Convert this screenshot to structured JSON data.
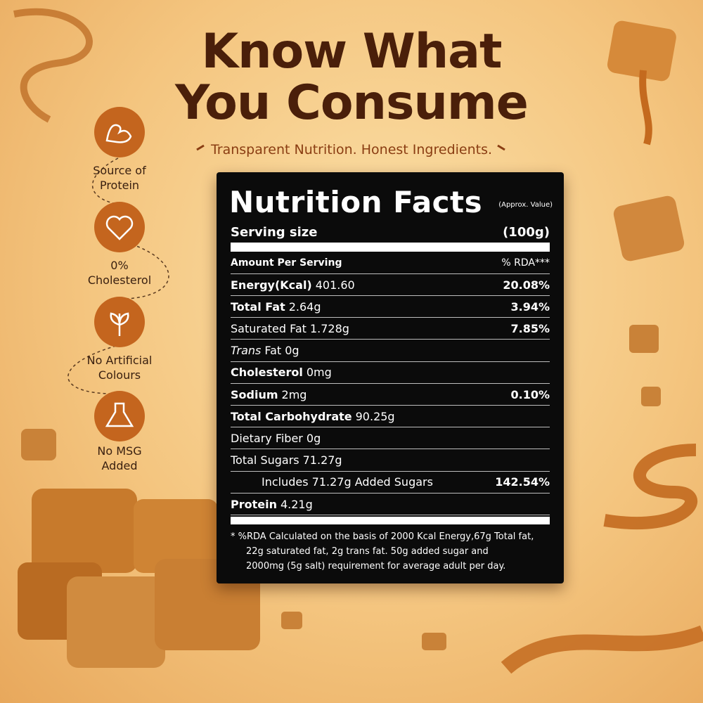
{
  "header": {
    "title_lines": [
      "Know What",
      "You Consume"
    ],
    "subtitle": "Transparent Nutrition. Honest Ingredients."
  },
  "features": [
    {
      "label_lines": [
        "Source of",
        "Protein"
      ]
    },
    {
      "label_lines": [
        "0%",
        "Cholesterol"
      ]
    },
    {
      "label_lines": [
        "No Artificial",
        "Colours"
      ]
    },
    {
      "label_lines": [
        "No MSG",
        "Added"
      ]
    }
  ],
  "nutrition": {
    "title": "Nutrition Facts",
    "note": "(Approx. Value)",
    "serving": {
      "label": "Serving size",
      "value": "(100g)"
    },
    "amount_header": {
      "label": "Amount Per Serving",
      "value": "% RDA***"
    },
    "rows": [
      {
        "name": "Energy(Kcal)",
        "amount": "401.60",
        "rda": "20.08%",
        "bold": true
      },
      {
        "name": "Total Fat",
        "amount": "2.64g",
        "rda": "3.94%",
        "bold": true
      },
      {
        "name": "Saturated Fat",
        "amount": "1.728g",
        "rda": "7.85%",
        "bold": false
      },
      {
        "name_italic": "Trans",
        "name": "Fat",
        "amount": "0g",
        "bold": false
      },
      {
        "name": "Cholesterol",
        "amount": "0mg",
        "bold": true
      },
      {
        "name": "Sodium",
        "amount": "2mg",
        "rda": "0.10%",
        "bold": true
      },
      {
        "name": "Total Carbohydrate",
        "amount": "90.25g",
        "bold": true
      },
      {
        "name": "Dietary Fiber",
        "amount": "0g",
        "bold": false
      },
      {
        "name": "Total Sugars",
        "amount": "71.27g",
        "bold": false
      },
      {
        "name": "Includes 71.27g Added Sugars",
        "rda": "142.54%",
        "bold": false,
        "indent": true
      },
      {
        "name": "Protein",
        "amount": "4.21g",
        "bold": true
      }
    ],
    "footnote_lines": [
      "* %RDA Calculated on the basis of 2000 Kcal Energy,67g Total fat,",
      "22g saturated fat, 2g trans fat. 50g added sugar and",
      "2000mg (5g salt) requirement for average adult per day."
    ]
  }
}
